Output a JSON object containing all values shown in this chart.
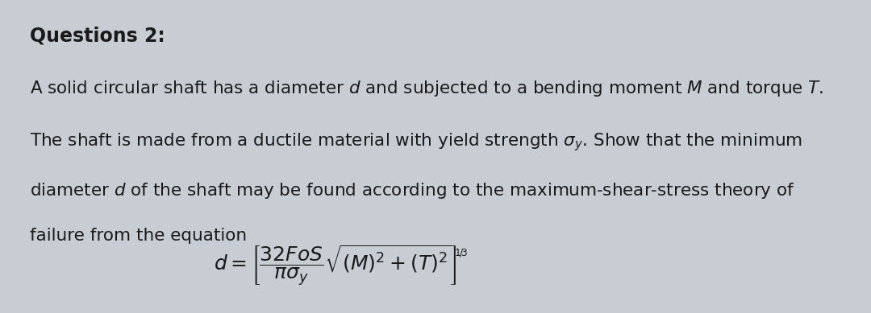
{
  "title": "Questions 2:",
  "bg_color": "#c8cdd4",
  "text_color": "#1a1a1a",
  "title_fontsize": 17,
  "body_fontsize": 15.5,
  "formula_fontsize": 14,
  "line1": "A solid circular shaft has a diameter $d$ and subjected to a bending moment $M$ and torque $T$.",
  "line2": "The shaft is made from a ductile material with yield strength $\\sigma_y$. Show that the minimum",
  "line3": "diameter $d$ of the shaft may be found according to the maximum-shear-stress theory of",
  "line4": "failure from the equation"
}
